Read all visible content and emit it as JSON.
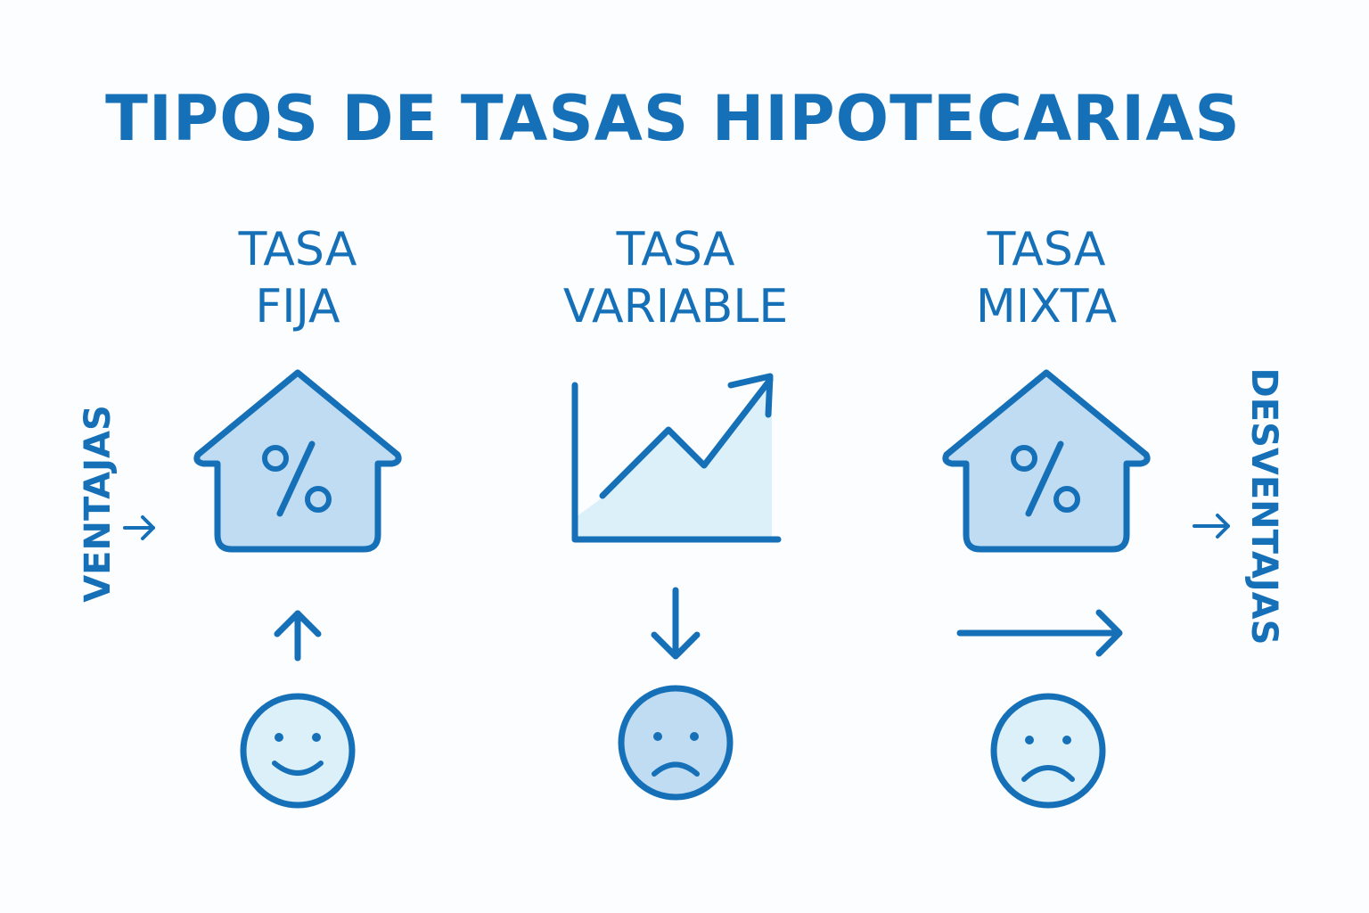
{
  "title": "TIPOS DE TASAS HIPOTECARIAS",
  "side_labels": {
    "left": "VENTAJAS",
    "right": "DESVENTAJAS"
  },
  "columns": [
    {
      "line1": "TASA",
      "line2": "FIJA",
      "icon": "house-percent-icon",
      "arrow": "arrow-up-icon",
      "face": "smiling-face-icon"
    },
    {
      "line1": "TASA",
      "line2": "VARIABLE",
      "icon": "rising-line-chart-icon",
      "arrow": "arrow-down-icon",
      "face": "sad-face-icon"
    },
    {
      "line1": "TASA",
      "line2": "MIXTA",
      "icon": "house-percent-icon",
      "arrow": "arrow-right-icon",
      "face": "sad-face-icon"
    }
  ],
  "colors": {
    "primary": "#1570b8",
    "fill_light": "#bfdcf2",
    "fill_lighter": "#dcf0f9",
    "background": "#fbfdfe"
  }
}
